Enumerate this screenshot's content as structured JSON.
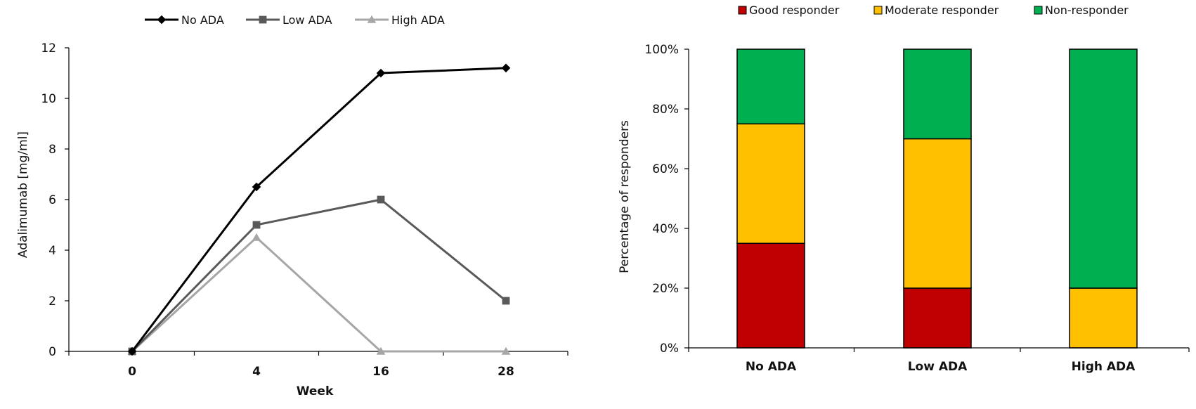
{
  "chart_data": [
    {
      "type": "line",
      "xlabel": "Week",
      "ylabel": "Adalimumab [mg/ml]",
      "categories": [
        "0",
        "4",
        "16",
        "28"
      ],
      "ylim": [
        0,
        12
      ],
      "yticks": [
        0,
        2,
        4,
        6,
        8,
        10,
        12
      ],
      "legend_position": "top",
      "series": [
        {
          "name": "No ADA",
          "values": [
            0,
            6.5,
            11.0,
            11.2
          ],
          "color": "#000000",
          "marker": "diamond"
        },
        {
          "name": "Low ADA",
          "values": [
            0,
            5.0,
            6.0,
            2.0
          ],
          "color": "#595959",
          "marker": "square"
        },
        {
          "name": "High ADA",
          "values": [
            0,
            4.5,
            0,
            0
          ],
          "color": "#a6a6a6",
          "marker": "triangle"
        }
      ],
      "grid": false
    },
    {
      "type": "bar",
      "stacked": true,
      "ylabel": "Percentage of responders",
      "categories": [
        "No ADA",
        "Low ADA",
        "High ADA"
      ],
      "ylim": [
        0,
        100
      ],
      "yticks": [
        "0%",
        "20%",
        "40%",
        "60%",
        "80%",
        "100%"
      ],
      "legend_position": "top",
      "series": [
        {
          "name": "Good responder",
          "values": [
            35,
            20,
            0
          ],
          "color": "#c00000"
        },
        {
          "name": "Moderate responder",
          "values": [
            40,
            50,
            20
          ],
          "color": "#ffc000"
        },
        {
          "name": "Non-responder",
          "values": [
            25,
            30,
            80
          ],
          "color": "#00b050"
        }
      ],
      "grid": false
    }
  ]
}
